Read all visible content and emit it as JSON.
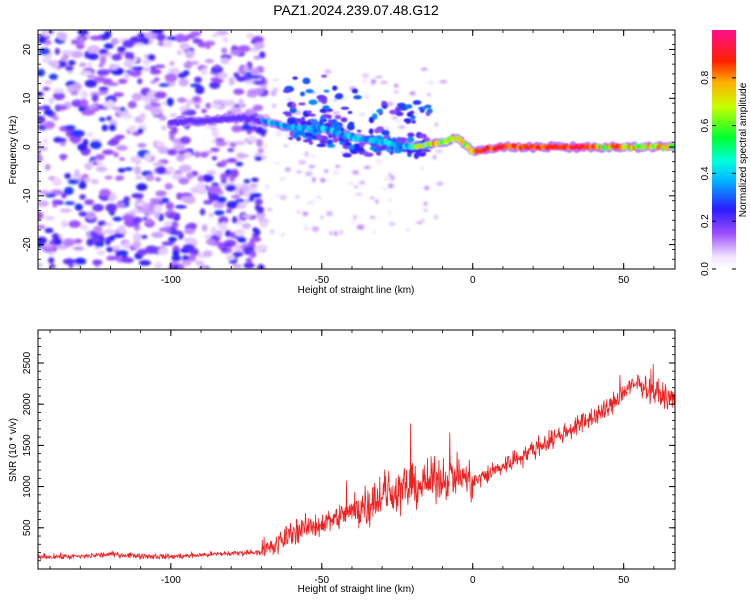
{
  "title": "PAZ1.2024.239.07.48.G12",
  "chart_data": [
    {
      "type": "heatmap",
      "xlabel": "Height of straight line (km)",
      "ylabel": "Frequency (Hz)",
      "xlim": [
        -144,
        67
      ],
      "ylim": [
        -25,
        24
      ],
      "xticks": [
        -100,
        -50,
        0,
        50
      ],
      "yticks": [
        -20,
        -10,
        0,
        10,
        20
      ],
      "colorbar": {
        "label": "Normalized spectral amplitude",
        "range": [
          0,
          1
        ],
        "ticks": [
          0.0,
          0.2,
          0.4,
          0.6,
          0.8
        ],
        "colormap": "rainbow (white-violet-blue-cyan-green-yellow-red-magenta)"
      },
      "ridge": [
        {
          "x": -100,
          "y": 5
        },
        {
          "x": -75,
          "y": 6
        },
        {
          "x": -68,
          "y": 5
        },
        {
          "x": -60,
          "y": 4
        },
        {
          "x": -50,
          "y": 4
        },
        {
          "x": -40,
          "y": 2
        },
        {
          "x": -30,
          "y": 1
        },
        {
          "x": -20,
          "y": 0
        },
        {
          "x": -10,
          "y": 1
        },
        {
          "x": -5,
          "y": 2
        },
        {
          "x": 0,
          "y": -1
        },
        {
          "x": 10,
          "y": 0
        },
        {
          "x": 30,
          "y": 0
        },
        {
          "x": 50,
          "y": 0
        },
        {
          "x": 67,
          "y": 0
        }
      ]
    },
    {
      "type": "line",
      "xlabel": "Height of straight line (km)",
      "ylabel": "SNR (10 * v/v)",
      "xlim": [
        -144,
        67
      ],
      "ylim": [
        0,
        2900
      ],
      "xticks": [
        -100,
        -50,
        0,
        50
      ],
      "yticks": [
        500,
        1000,
        1500,
        2000,
        2500
      ],
      "series": [
        {
          "color": "#ee2020",
          "x": [
            -144,
            -130,
            -120,
            -110,
            -100,
            -90,
            -80,
            -70,
            -65,
            -60,
            -55,
            -50,
            -45,
            -40,
            -35,
            -30,
            -25,
            -20,
            -15,
            -10,
            -5,
            0,
            5,
            10,
            15,
            20,
            25,
            30,
            35,
            40,
            45,
            50,
            55,
            60,
            67
          ],
          "y": [
            150,
            150,
            180,
            160,
            150,
            170,
            190,
            210,
            280,
            450,
            500,
            550,
            620,
            700,
            800,
            900,
            950,
            1000,
            1050,
            1100,
            1150,
            1050,
            1150,
            1250,
            1350,
            1450,
            1550,
            1650,
            1750,
            1850,
            1950,
            2150,
            2250,
            2150,
            2050
          ]
        }
      ]
    }
  ]
}
